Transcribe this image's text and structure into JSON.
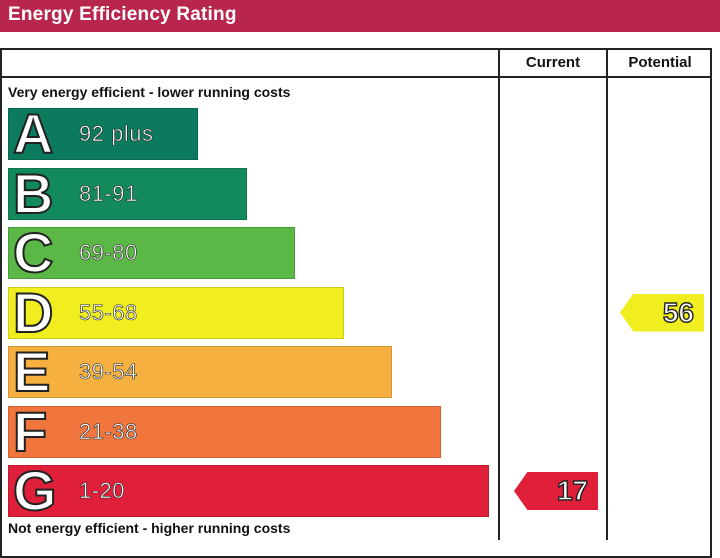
{
  "chart_data": {
    "type": "table",
    "title": "Energy Efficiency Rating",
    "columns": [
      "Current",
      "Potential"
    ],
    "top_caption": "Very energy efficient - lower running costs",
    "bottom_caption": "Not energy efficient - higher running costs",
    "bands": [
      {
        "letter": "A",
        "range": "92 plus",
        "color": "#0c7a5c"
      },
      {
        "letter": "B",
        "range": "81-91",
        "color": "#138a5c"
      },
      {
        "letter": "C",
        "range": "69-80",
        "color": "#5bb846"
      },
      {
        "letter": "D",
        "range": "55-68",
        "color": "#f0ee1f"
      },
      {
        "letter": "E",
        "range": "39-54",
        "color": "#f6b03f"
      },
      {
        "letter": "F",
        "range": "21-38",
        "color": "#f1763e"
      },
      {
        "letter": "G",
        "range": "1-20",
        "color": "#e0203a"
      }
    ],
    "current": {
      "value": 17,
      "band": "G",
      "color": "#e0203a"
    },
    "potential": {
      "value": 56,
      "band": "D",
      "color": "#f0ee1f"
    }
  }
}
